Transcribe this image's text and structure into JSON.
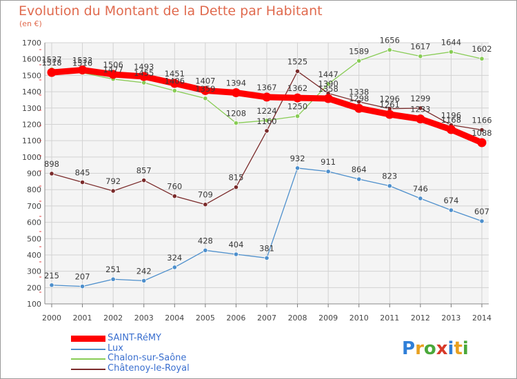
{
  "title": "Evolution du Montant de la Dette par Habitant",
  "unit": "(en €)",
  "logo": "Proxiti",
  "chart_data": {
    "type": "line",
    "title": "Evolution du Montant de la Dette par Habitant",
    "ylabel": "(en €)",
    "xlabel": "",
    "ylim": [
      100,
      1700
    ],
    "yticks": [
      100,
      200,
      300,
      400,
      500,
      600,
      700,
      800,
      900,
      1000,
      1100,
      1200,
      1300,
      1400,
      1500,
      1600,
      1700
    ],
    "grid": true,
    "legend": "bottom-left",
    "x": [
      "2000",
      "2001",
      "2002",
      "2003",
      "2004",
      "2005",
      "2006",
      "2007",
      "2008",
      "2009",
      "2010",
      "2011",
      "2012",
      "2013",
      "2014"
    ],
    "series": [
      {
        "name": "SAINT-RéMY",
        "color": "#ff0000",
        "values": [
          1518,
          1533,
          1506,
          1493,
          1451,
          1407,
          1394,
          1367,
          1362,
          1358,
          1298,
          1261,
          1233,
          1168,
          1088
        ]
      },
      {
        "name": "Lux",
        "color": "#4d8fcc",
        "values": [
          215,
          207,
          251,
          242,
          324,
          428,
          404,
          381,
          932,
          911,
          864,
          823,
          746,
          674,
          607
        ]
      },
      {
        "name": "Chalon-sur-Saône",
        "color": "#88cc55",
        "values": [
          1537,
          1516,
          1477,
          1455,
          1406,
          1359,
          1208,
          1224,
          1250,
          1447,
          1589,
          1656,
          1617,
          1644,
          1602
        ]
      },
      {
        "name": "Châtenoy-le-Royal",
        "color": "#7a2a2a",
        "values": [
          898,
          845,
          792,
          857,
          760,
          709,
          815,
          1160,
          1525,
          1390,
          1338,
          1296,
          1299,
          1196,
          1166
        ]
      }
    ]
  }
}
